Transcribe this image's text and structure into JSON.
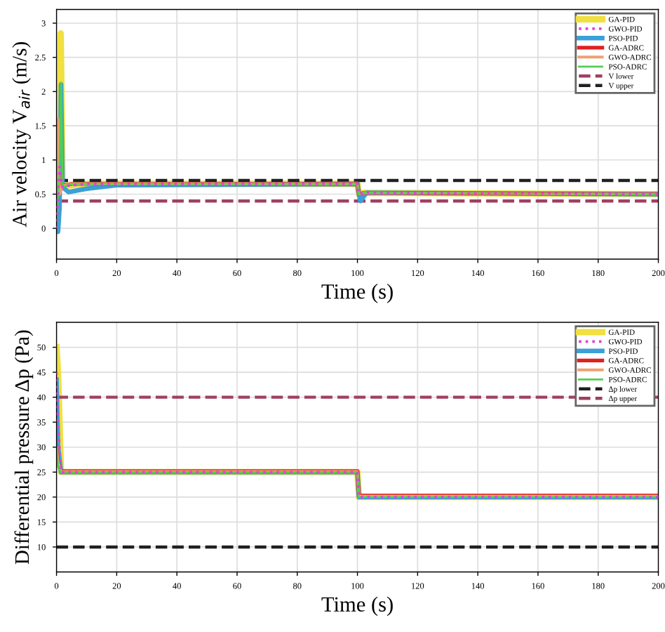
{
  "chart_data": [
    {
      "type": "line",
      "xlabel": "Time (s)",
      "ylabel": "Air velocity V$_{air}$ (m/s)",
      "xlim": [
        0,
        200
      ],
      "xticks": [
        0,
        20,
        40,
        60,
        80,
        100,
        120,
        140,
        160,
        180,
        200
      ],
      "ylim": [
        -0.45,
        3.2
      ],
      "yticks": [
        0,
        0.5,
        1,
        1.5,
        2,
        2.5,
        3
      ],
      "grid": true,
      "legend": "top right",
      "series": [
        {
          "name": "GA-PID",
          "color": "#f0e040",
          "x": [
            0,
            1,
            1.4,
            2,
            3,
            10,
            100,
            100.5,
            102,
            200
          ],
          "values": [
            0,
            0.8,
            2.85,
            0.7,
            0.62,
            0.65,
            0.65,
            0.5,
            0.52,
            0.5
          ]
        },
        {
          "name": "GWO-PID",
          "color": "#e040e0",
          "line_style": "dotted",
          "x": [
            0,
            1,
            2,
            3,
            10,
            100,
            100.5,
            102,
            200
          ],
          "values": [
            0,
            0.9,
            0.6,
            0.62,
            0.65,
            0.65,
            0.5,
            0.52,
            0.5
          ]
        },
        {
          "name": "PSO-PID",
          "color": "#3aa0d8",
          "x": [
            0,
            0.5,
            1,
            1.5,
            2,
            4,
            10,
            20,
            100,
            100.5,
            101,
            103,
            200
          ],
          "values": [
            0,
            -0.05,
            0.3,
            2.1,
            0.6,
            0.53,
            0.58,
            0.63,
            0.65,
            0.5,
            0.4,
            0.52,
            0.5
          ]
        },
        {
          "name": "GA-ADRC",
          "color": "#e02020",
          "x": [
            0,
            0.5,
            1,
            2,
            5,
            100,
            100.5,
            102,
            200
          ],
          "values": [
            0.4,
            1.0,
            0.55,
            0.62,
            0.65,
            0.65,
            0.5,
            0.52,
            0.5
          ]
        },
        {
          "name": "GWO-ADRC",
          "color": "#f0a070",
          "x": [
            0,
            0.5,
            1,
            2,
            5,
            100,
            100.5,
            102,
            200
          ],
          "values": [
            0.5,
            1.6,
            0.5,
            0.62,
            0.65,
            0.65,
            0.5,
            0.52,
            0.5
          ]
        },
        {
          "name": "PSO-ADRC",
          "color": "#50d050",
          "x": [
            0,
            0.5,
            1,
            1.5,
            2,
            5,
            100,
            100.5,
            102,
            200
          ],
          "values": [
            0,
            0.5,
            0.8,
            2.13,
            0.6,
            0.65,
            0.65,
            0.5,
            0.52,
            0.5
          ]
        }
      ],
      "ref_lines": [
        {
          "axis": "y",
          "value": 0.4,
          "label": "V lower",
          "color": "#a04060",
          "line_style": "dashed"
        },
        {
          "axis": "y",
          "value": 0.7,
          "label": "V upper",
          "color": "#202020",
          "line_style": "dashed"
        }
      ]
    },
    {
      "type": "line",
      "xlabel": "Time (s)",
      "ylabel": "Differential pressure Δp (Pa)",
      "xlim": [
        0,
        200
      ],
      "xticks": [
        0,
        20,
        40,
        60,
        80,
        100,
        120,
        140,
        160,
        180,
        200
      ],
      "ylim": [
        5,
        55
      ],
      "yticks": [
        10,
        15,
        20,
        25,
        30,
        35,
        40,
        45,
        50
      ],
      "grid": true,
      "legend": "top right",
      "series": [
        {
          "name": "GA-PID",
          "color": "#f0e040",
          "x": [
            0,
            0.5,
            1.5,
            100,
            100.5,
            200
          ],
          "values": [
            50,
            45,
            25,
            25,
            20,
            20
          ]
        },
        {
          "name": "GWO-PID",
          "color": "#e040e0",
          "line_style": "dotted",
          "x": [
            0,
            0.5,
            1.5,
            100,
            100.5,
            200
          ],
          "values": [
            45,
            35,
            25,
            25,
            20,
            20
          ]
        },
        {
          "name": "PSO-PID",
          "color": "#3aa0d8",
          "x": [
            0,
            0.5,
            1.5,
            100,
            100.5,
            200
          ],
          "values": [
            43.5,
            30,
            25,
            25,
            20,
            20
          ]
        },
        {
          "name": "GA-ADRC",
          "color": "#e02020",
          "x": [
            0,
            0.5,
            1.5,
            100,
            100.5,
            200
          ],
          "values": [
            30,
            27,
            25.2,
            25.2,
            20.3,
            20.3
          ]
        },
        {
          "name": "GWO-ADRC",
          "color": "#f0a070",
          "x": [
            0,
            0.5,
            1.5,
            100,
            100.5,
            200
          ],
          "values": [
            30,
            27,
            25.1,
            25.1,
            20.2,
            20.2
          ]
        },
        {
          "name": "PSO-ADRC",
          "color": "#50d050",
          "x": [
            0,
            0.5,
            1.5,
            100,
            100.5,
            200
          ],
          "values": [
            30,
            26,
            25,
            25,
            20,
            20
          ]
        }
      ],
      "ref_lines": [
        {
          "axis": "y",
          "value": 10,
          "label": "Δp lower",
          "color": "#202020",
          "line_style": "dashed"
        },
        {
          "axis": "y",
          "value": 40,
          "label": "Δp upper",
          "color": "#a04060",
          "line_style": "dashed"
        }
      ]
    }
  ]
}
